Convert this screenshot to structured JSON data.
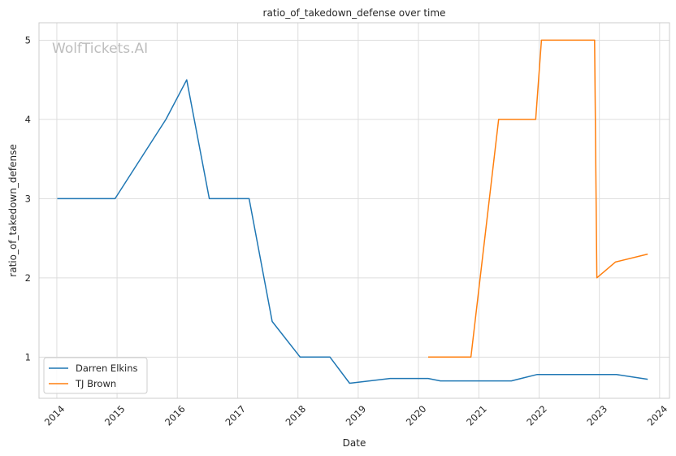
{
  "chart_data": {
    "type": "line",
    "title": "ratio_of_takedown_defense over time",
    "xlabel": "Date",
    "ylabel": "ratio_of_takedown_defense",
    "watermark": "WolfTickets.AI",
    "x_ticks": [
      "2014",
      "2015",
      "2016",
      "2017",
      "2018",
      "2019",
      "2020",
      "2021",
      "2022",
      "2023",
      "2024"
    ],
    "y_ticks": [
      "1",
      "2",
      "3",
      "4",
      "5"
    ],
    "xlim": [
      "2013-09-15",
      "2024-03-01"
    ],
    "ylim": [
      0.48,
      5.22
    ],
    "grid": true,
    "legend": "lower-left",
    "series": [
      {
        "name": "Darren Elkins",
        "color": "#1f77b4",
        "points": [
          [
            "2014-01-04",
            3.0
          ],
          [
            "2014-12-20",
            3.0
          ],
          [
            "2015-10-24",
            4.0
          ],
          [
            "2016-02-27",
            4.5
          ],
          [
            "2016-07-13",
            3.0
          ],
          [
            "2017-03-11",
            3.0
          ],
          [
            "2017-07-29",
            1.45
          ],
          [
            "2018-01-14",
            1.0
          ],
          [
            "2018-07-14",
            1.0
          ],
          [
            "2018-11-10",
            0.67
          ],
          [
            "2019-07-13",
            0.73
          ],
          [
            "2020-02-29",
            0.73
          ],
          [
            "2020-05-13",
            0.7
          ],
          [
            "2021-07-17",
            0.7
          ],
          [
            "2021-12-18",
            0.78
          ],
          [
            "2023-04-15",
            0.78
          ],
          [
            "2023-10-21",
            0.72
          ]
        ]
      },
      {
        "name": "TJ Brown",
        "color": "#ff7f0e",
        "points": [
          [
            "2020-02-29",
            1.0
          ],
          [
            "2020-11-14",
            1.0
          ],
          [
            "2021-05-01",
            4.0
          ],
          [
            "2021-12-11",
            4.0
          ],
          [
            "2022-01-15",
            5.0
          ],
          [
            "2022-12-03",
            5.0
          ],
          [
            "2022-12-17",
            2.0
          ],
          [
            "2023-04-08",
            2.2
          ],
          [
            "2023-10-21",
            2.3
          ]
        ]
      }
    ]
  }
}
